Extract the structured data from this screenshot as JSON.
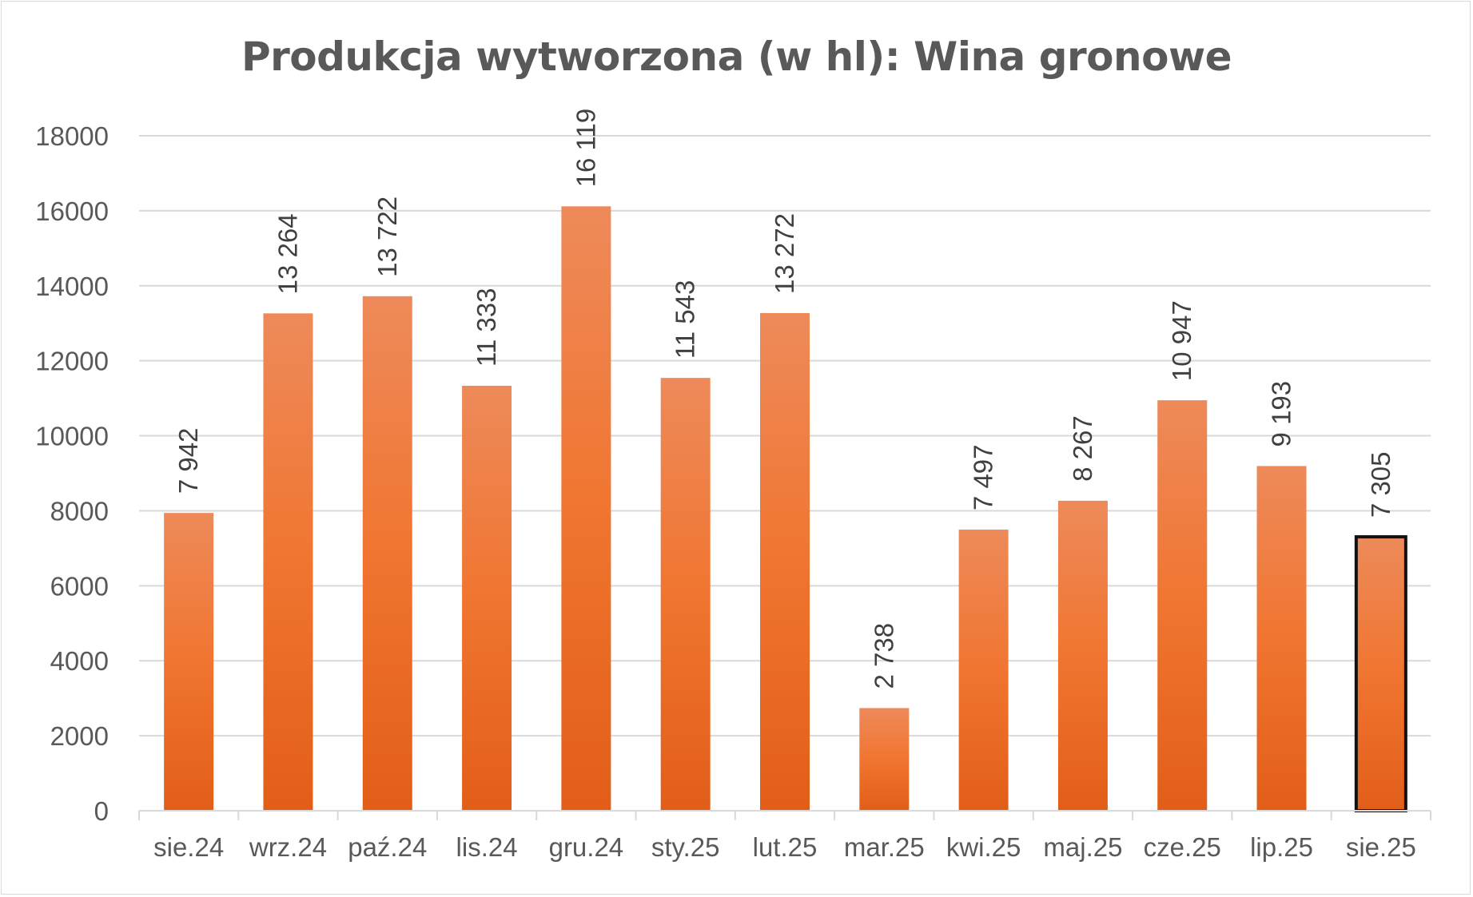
{
  "chart_data": {
    "type": "bar",
    "title": "Produkcja wytworzona (w hl): Wina gronowe",
    "xlabel": "",
    "ylabel": "",
    "ylim": [
      0,
      18000
    ],
    "yticks": [
      "0",
      "2000",
      "4000",
      "6000",
      "8000",
      "10000",
      "12000",
      "14000",
      "16000",
      "18000"
    ],
    "grid": true,
    "legend": "none",
    "categories": [
      "sie.24",
      "wrz.24",
      "paź.24",
      "lis.24",
      "gru.24",
      "sty.25",
      "lut.25",
      "mar.25",
      "kwi.25",
      "maj.25",
      "cze.25",
      "lip.25",
      "sie.25"
    ],
    "values": [
      7942,
      13264,
      13722,
      11333,
      16119,
      11543,
      13272,
      2738,
      7497,
      8267,
      10947,
      9193,
      7305
    ],
    "data_labels": [
      "7 942",
      "13 264",
      "13 722",
      "11 333",
      "16 119",
      "11 543",
      "13 272",
      "2 738",
      "7 497",
      "8 267",
      "10 947",
      "9 193",
      "7 305"
    ],
    "highlighted_category": "sie.25",
    "colors": {
      "bar_top": "#ee8a5a",
      "bar_mid": "#f07530",
      "bar_bottom": "#e25e18",
      "highlight_border": "#111111",
      "grid": "#d9d9d9",
      "text": "#595959"
    }
  }
}
